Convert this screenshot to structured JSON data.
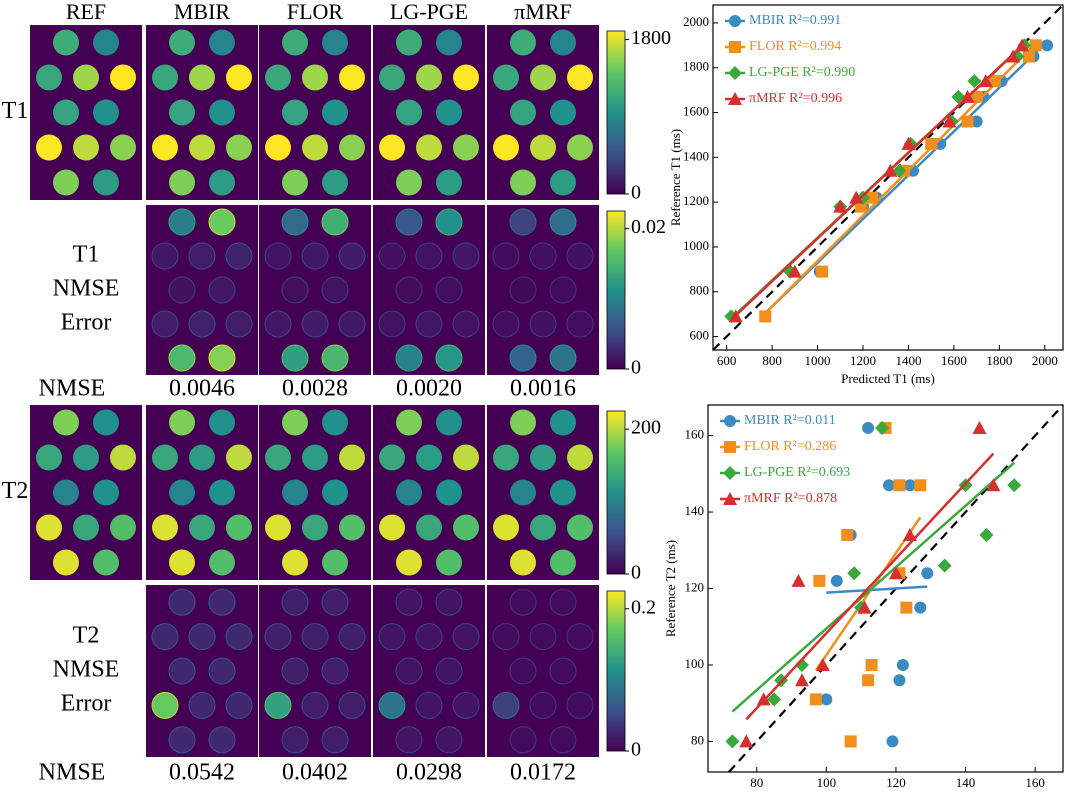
{
  "figure": {
    "column_headers": [
      "REF",
      "MBIR",
      "FLOR",
      "LG-PGE",
      "πMRF"
    ],
    "row_labels": [
      [
        "T1"
      ],
      [
        "T1",
        "NMSE",
        "Error"
      ],
      [
        "T2"
      ],
      [
        "T2",
        "NMSE",
        "Error"
      ]
    ],
    "nmse_label": "NMSE",
    "t1_nmse": [
      "0.0046",
      "0.0028",
      "0.0020",
      "0.0016"
    ],
    "t2_nmse": [
      "0.0542",
      "0.0402",
      "0.0298",
      "0.0172"
    ],
    "colorbars": [
      {
        "lim": [
          0,
          1900
        ],
        "ticks": [
          0,
          1800
        ]
      },
      {
        "lim": [
          0,
          0.0225
        ],
        "ticks": [
          0,
          0.02
        ]
      },
      {
        "lim": [
          0,
          225
        ],
        "ticks": [
          0,
          200
        ]
      },
      {
        "lim": [
          0,
          0.225
        ],
        "ticks": [
          0,
          0.2
        ]
      }
    ]
  },
  "chart_data": [
    {
      "type": "scatter",
      "xlabel": "Predicted T1 (ms)",
      "ylabel": "Reference T1 (ms)",
      "xlim": [
        540,
        2080
      ],
      "ylim": [
        540,
        2080
      ],
      "xticks": [
        600,
        800,
        1000,
        1200,
        1400,
        1600,
        1800,
        2000
      ],
      "yticks": [
        600,
        800,
        1000,
        1200,
        1400,
        1600,
        1800,
        2000
      ],
      "series": [
        {
          "name": "MBIR R²=0.991",
          "color": "#3b8bc2",
          "marker": "circle",
          "x": [
            770,
            1010,
            1200,
            1260,
            1420,
            1540,
            1700,
            1730,
            1810,
            1950,
            2010
          ],
          "values": [
            690,
            890,
            1180,
            1220,
            1340,
            1460,
            1560,
            1670,
            1740,
            1850,
            1900
          ]
        },
        {
          "name": "FLOR R²=0.994",
          "color": "#f28e1c",
          "marker": "square",
          "x": [
            770,
            1020,
            1190,
            1240,
            1380,
            1500,
            1660,
            1700,
            1780,
            1930,
            1960
          ],
          "values": [
            690,
            890,
            1180,
            1220,
            1340,
            1460,
            1560,
            1670,
            1740,
            1850,
            1900
          ]
        },
        {
          "name": "LG-PGE R²=0.990",
          "color": "#3aa83a",
          "marker": "diamond",
          "x": [
            620,
            880,
            1100,
            1200,
            1360,
            1410,
            1590,
            1620,
            1690,
            1880,
            1910
          ],
          "values": [
            690,
            890,
            1180,
            1220,
            1340,
            1460,
            1560,
            1670,
            1740,
            1850,
            1900
          ]
        },
        {
          "name": "πMRF R²=0.996",
          "color": "#d62f2f",
          "marker": "triangle",
          "x": [
            640,
            900,
            1100,
            1170,
            1320,
            1400,
            1580,
            1660,
            1740,
            1860,
            1900
          ],
          "values": [
            690,
            890,
            1180,
            1220,
            1340,
            1460,
            1560,
            1670,
            1740,
            1850,
            1900
          ]
        }
      ]
    },
    {
      "type": "scatter",
      "xlabel": "Predicted T2 (ms)",
      "ylabel": "Reference T2 (ms)",
      "xlim": [
        66,
        168
      ],
      "ylim": [
        72,
        168
      ],
      "xticks": [
        80,
        100,
        120,
        140,
        160
      ],
      "yticks": [
        80,
        100,
        120,
        140,
        160
      ],
      "series": [
        {
          "name": "MBIR R²=0.011",
          "color": "#3b8bc2",
          "marker": "circle",
          "x": [
            112,
            118,
            124,
            107,
            103,
            129,
            127,
            122,
            121,
            100,
            119
          ],
          "values": [
            162,
            147,
            147,
            134,
            122,
            124,
            115,
            100,
            96,
            91,
            80
          ]
        },
        {
          "name": "FLOR R²=0.286",
          "color": "#f28e1c",
          "marker": "square",
          "x": [
            117,
            121,
            127,
            106,
            98,
            121,
            123,
            113,
            112,
            97,
            107
          ],
          "values": [
            162,
            147,
            147,
            134,
            122,
            124,
            115,
            100,
            96,
            91,
            80
          ]
        },
        {
          "name": "LG-PGE R²=0.693",
          "color": "#3aa83a",
          "marker": "diamond",
          "x": [
            116,
            140,
            154,
            146,
            134,
            108,
            110,
            93,
            87,
            85,
            73
          ],
          "values": [
            162,
            147,
            147,
            134,
            126,
            124,
            115,
            100,
            96,
            91,
            80
          ]
        },
        {
          "name": "πMRF R²=0.878",
          "color": "#d62f2f",
          "marker": "triangle",
          "x": [
            144,
            148,
            124,
            92,
            120,
            111,
            99,
            93,
            82,
            77
          ],
          "values": [
            162,
            147,
            134,
            122,
            124,
            115,
            100,
            96,
            91,
            80
          ]
        }
      ]
    }
  ]
}
